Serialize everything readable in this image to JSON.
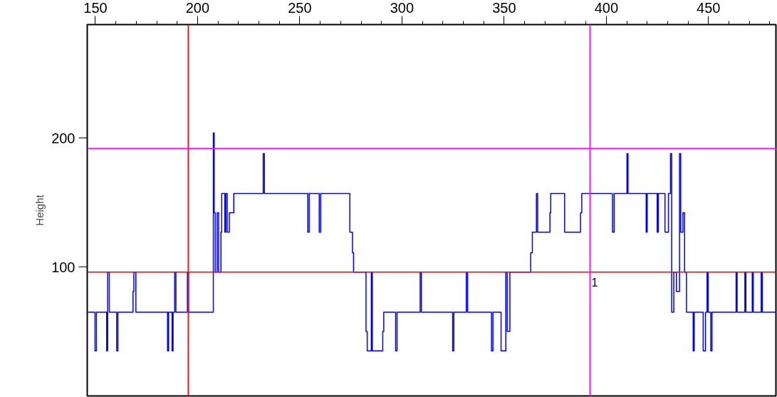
{
  "chart_data": {
    "type": "step",
    "ylabel": "Height",
    "xlim": [
      146,
      483
    ],
    "ylim": [
      0,
      288
    ],
    "xticks": [
      150,
      {
        "value": 160,
        "label": null
      },
      {
        "value": 170,
        "label": null
      },
      {
        "value": 180,
        "label": null
      },
      {
        "value": 190,
        "label": null
      },
      200,
      {
        "value": 210,
        "label": null
      },
      {
        "value": 220,
        "label": null
      },
      {
        "value": 230,
        "label": null
      },
      {
        "value": 240,
        "label": null
      },
      250,
      {
        "value": 260,
        "label": null
      },
      {
        "value": 270,
        "label": null
      },
      {
        "value": 280,
        "label": null
      },
      {
        "value": 290,
        "label": null
      },
      300,
      {
        "value": 310,
        "label": null
      },
      {
        "value": 320,
        "label": null
      },
      {
        "value": 330,
        "label": null
      },
      {
        "value": 340,
        "label": null
      },
      350,
      {
        "value": 360,
        "label": null
      },
      {
        "value": 370,
        "label": null
      },
      {
        "value": 380,
        "label": null
      },
      {
        "value": 390,
        "label": null
      },
      400,
      {
        "value": 410,
        "label": null
      },
      {
        "value": 420,
        "label": null
      },
      {
        "value": 430,
        "label": null
      },
      {
        "value": 440,
        "label": null
      },
      450,
      {
        "value": 460,
        "label": null
      },
      {
        "value": 470,
        "label": null
      },
      {
        "value": 480,
        "label": null
      }
    ],
    "yticks": [
      100,
      200
    ],
    "grid": false,
    "series": [
      {
        "color": "#0000ff",
        "x": [
          146.1,
          149.8,
          150.5,
          155.5,
          156,
          156.8,
          160.4,
          161,
          168.4,
          168.8,
          169.8,
          185.3,
          185.8,
          187.5,
          188,
          188.8,
          189.4,
          195,
          195.6,
          207.7,
          208.1,
          208.6,
          209.6,
          210.3,
          211.4,
          211.8,
          213.3,
          213.8,
          214.5,
          215.5,
          217.7,
          232.1,
          232.7,
          253.9,
          254.6,
          259.5,
          260.2,
          274.5,
          275.8,
          276.3,
          282.4,
          283,
          285,
          285.5,
          290.6,
          291.1,
          296.9,
          297.6,
          308.9,
          309.5,
          324.8,
          325.4,
          331.5,
          332.1,
          343.8,
          344.5,
          348.5,
          350.8,
          351.5,
          352.8,
          363,
          363.8,
          365.8,
          366.4,
          372.4,
          372.8,
          379.6,
          387.4,
          388,
          403,
          403.8,
          410.1,
          410.6,
          419.5,
          420,
          424.9,
          425.4,
          428.7,
          430.4,
          431.4,
          432,
          433,
          434.3,
          435.8,
          436.4,
          437.5,
          438.3,
          439.2,
          442.5,
          443,
          447.4,
          448.5,
          449.3,
          449.8,
          451.1,
          451.7,
          463.5,
          464,
          467.8,
          468.3,
          471.4,
          471.9,
          475.8,
          476.3,
          483
        ],
        "values": [
          65,
          35,
          65,
          35,
          96,
          65,
          35,
          65,
          81,
          96,
          65,
          35,
          65,
          35,
          65,
          96,
          65,
          96,
          65,
          204,
          142,
          96,
          142,
          96,
          127,
          157,
          127,
          157,
          127,
          142,
          157,
          188,
          157,
          127,
          157,
          127,
          157,
          127,
          111,
          96,
          50,
          35,
          96,
          35,
          50,
          65,
          35,
          65,
          96,
          65,
          35,
          65,
          96,
          65,
          35,
          65,
          35,
          96,
          50,
          96,
          111,
          127,
          157,
          127,
          142,
          157,
          127,
          142,
          157,
          127,
          157,
          188,
          157,
          127,
          157,
          127,
          157,
          127,
          157,
          188,
          65,
          96,
          81,
          188,
          127,
          142,
          96,
          65,
          35,
          65,
          35,
          65,
          96,
          65,
          35,
          65,
          96,
          65,
          96,
          65,
          96,
          65,
          96,
          65,
          65
        ]
      }
    ],
    "ref_lines": [
      {
        "axis": "x",
        "value": 195.4,
        "color": "#ff0000"
      },
      {
        "axis": "y",
        "value": 96,
        "color": "#ff0000"
      },
      {
        "axis": "x",
        "value": 392,
        "color": "#ff00ff"
      },
      {
        "axis": "y",
        "value": 192,
        "color": "#ff00ff"
      }
    ],
    "annotations": [
      {
        "text": "1",
        "x": 392,
        "y": 96
      }
    ]
  }
}
